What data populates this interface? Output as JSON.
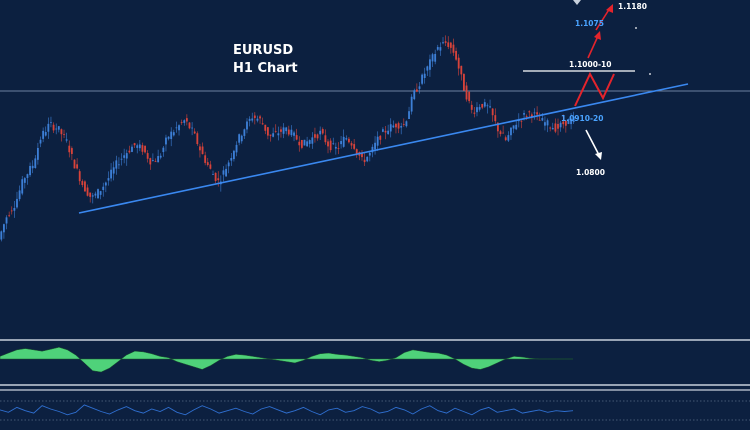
{
  "chart_data": {
    "type": "candlestick",
    "title": "EURUSD",
    "subtitle": "H1 Chart",
    "colors": {
      "background": "#0c2040",
      "bull": "#3d7fd6",
      "bear": "#d8433a",
      "trendline": "#3a88f0",
      "macd_positive": "#4fd27a",
      "macd_negative": "#4fd27a",
      "rsi": "#2f6fd0",
      "panel_border": "#c8d0dc",
      "arrow_up": "#e4242c",
      "arrow_down": "#ffffff",
      "label_blue": "#4aa3ff",
      "label_white": "#ffffff"
    },
    "price_path": [
      1.0905,
      1.0935,
      1.095,
      1.098,
      1.0995,
      1.103,
      1.1045,
      1.104,
      1.1025,
      1.0995,
      1.097,
      1.0955,
      1.0965,
      1.098,
      1.0998,
      1.101,
      1.102,
      1.1015,
      1.1,
      1.1005,
      1.103,
      1.104,
      1.105,
      1.1035,
      1.101,
      1.099,
      1.0975,
      1.0995,
      1.102,
      1.104,
      1.1055,
      1.105,
      1.103,
      1.1035,
      1.104,
      1.103,
      1.102,
      1.1028,
      1.1035,
      1.102,
      1.1015,
      1.103,
      1.102,
      1.1,
      1.101,
      1.103,
      1.104,
      1.1045,
      1.1045,
      1.108,
      1.11,
      1.112,
      1.114,
      1.1145,
      1.113,
      1.109,
      1.106,
      1.107,
      1.1065,
      1.104,
      1.1025,
      1.1045,
      1.1055,
      1.106,
      1.105,
      1.1045,
      1.104,
      1.1048,
      1.105
    ],
    "trendline": {
      "from": [
        0,
        1.0968
      ],
      "to": [
        1,
        1.1062
      ]
    },
    "resistance_line": {
      "label": "1.1000-10",
      "level": 1.1064
    },
    "support_label": "1.0910-20",
    "upside_targets": [
      "1.1075",
      "1.1180"
    ],
    "downside_target": "1.0800",
    "forecast_zigzag": [
      1.1025,
      1.1065,
      1.1045,
      1.1068
    ],
    "macd": [
      0.2,
      0.45,
      0.7,
      0.8,
      0.7,
      0.6,
      0.75,
      0.9,
      0.7,
      0.3,
      -0.3,
      -0.9,
      -1.0,
      -0.7,
      -0.2,
      0.3,
      0.6,
      0.55,
      0.4,
      0.2,
      0.1,
      -0.2,
      -0.4,
      -0.6,
      -0.8,
      -0.5,
      -0.1,
      0.2,
      0.35,
      0.3,
      0.2,
      0.1,
      0.0,
      -0.1,
      -0.2,
      -0.3,
      -0.1,
      0.2,
      0.4,
      0.45,
      0.35,
      0.3,
      0.2,
      0.1,
      -0.1,
      -0.2,
      -0.1,
      0.1,
      0.5,
      0.7,
      0.6,
      0.5,
      0.45,
      0.3,
      0.0,
      -0.4,
      -0.7,
      -0.8,
      -0.6,
      -0.3,
      0.0,
      0.2,
      0.15,
      0.05,
      0.0,
      0.0,
      0.0,
      0.0,
      0.0
    ],
    "rsi": [
      52,
      49,
      55,
      51,
      48,
      57,
      53,
      50,
      46,
      49,
      58,
      54,
      50,
      47,
      52,
      56,
      51,
      48,
      53,
      50,
      55,
      49,
      46,
      52,
      57,
      53,
      48,
      51,
      54,
      50,
      47,
      53,
      56,
      52,
      48,
      51,
      55,
      50,
      46,
      52,
      54,
      49,
      51,
      56,
      53,
      48,
      50,
      55,
      52,
      47,
      53,
      57,
      51,
      48,
      54,
      50,
      46,
      52,
      55,
      49,
      51,
      53,
      48,
      50,
      52,
      49,
      51,
      50,
      51
    ],
    "x_axis_labels": []
  }
}
